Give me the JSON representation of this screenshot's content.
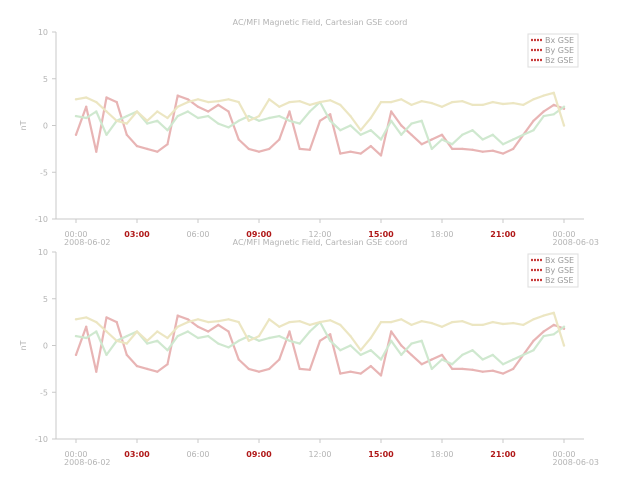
{
  "chart_data": [
    {
      "type": "line",
      "title": "AC/MFI Magnetic Field, Cartesian GSE coord",
      "ylabel": "nT",
      "ylim": [
        -10,
        10
      ],
      "yticks": [
        10,
        5,
        0,
        -5,
        -10
      ],
      "yticklabels": [
        "10",
        "5",
        "0",
        "-5",
        "-10"
      ],
      "xticks": [
        0,
        3,
        6,
        9,
        12,
        15,
        18,
        21,
        24
      ],
      "xticklabels": [
        "00:00",
        "03:00",
        "06:00",
        "09:00",
        "12:00",
        "15:00",
        "18:00",
        "21:00",
        "00:00"
      ],
      "xtick_highlight": [
        false,
        true,
        false,
        true,
        false,
        true,
        false,
        true,
        false
      ],
      "xdate_start": "2008-06-02",
      "xdate_end": "2008-06-03",
      "legend": "top-right",
      "grid": false,
      "series": [
        {
          "name": "Bx GSE",
          "color": "#e8b4b4",
          "x": [
            0,
            0.5,
            1,
            1.5,
            2,
            2.5,
            3,
            3.5,
            4,
            4.5,
            5,
            5.5,
            6,
            6.5,
            7,
            7.5,
            8,
            8.5,
            9,
            9.5,
            10,
            10.5,
            11,
            11.5,
            12,
            12.5,
            13,
            13.5,
            14,
            14.5,
            15,
            15.5,
            16,
            16.5,
            17,
            17.5,
            18,
            18.5,
            19,
            19.5,
            20,
            20.5,
            21,
            21.5,
            22,
            22.5,
            23,
            23.5,
            24
          ],
          "values": [
            -1,
            2,
            -2.8,
            3,
            2.5,
            -1,
            -2.2,
            -2.5,
            -2.8,
            -2,
            3.2,
            2.8,
            2,
            1.5,
            2.2,
            1.5,
            -1.5,
            -2.5,
            -2.8,
            -2.5,
            -1.5,
            1.5,
            -2.5,
            -2.6,
            0.5,
            1.2,
            -3,
            -2.8,
            -3,
            -2.2,
            -3.2,
            1.5,
            0,
            -1,
            -2,
            -1.5,
            -1,
            -2.5,
            -2.5,
            -2.6,
            -2.8,
            -2.7,
            -3,
            -2.5,
            -1,
            0.5,
            1.5,
            2.2,
            1.8
          ]
        },
        {
          "name": "By GSE",
          "color": "#cfe8cf",
          "x": [
            0,
            0.5,
            1,
            1.5,
            2,
            2.5,
            3,
            3.5,
            4,
            4.5,
            5,
            5.5,
            6,
            6.5,
            7,
            7.5,
            8,
            8.5,
            9,
            9.5,
            10,
            10.5,
            11,
            11.5,
            12,
            12.5,
            13,
            13.5,
            14,
            14.5,
            15,
            15.5,
            16,
            16.5,
            17,
            17.5,
            18,
            18.5,
            19,
            19.5,
            20,
            20.5,
            21,
            21.5,
            22,
            22.5,
            23,
            23.5,
            24
          ],
          "values": [
            1,
            0.8,
            1.5,
            -1,
            0.5,
            1,
            1.5,
            0.2,
            0.5,
            -0.5,
            1,
            1.5,
            0.8,
            1,
            0.2,
            -0.2,
            0.5,
            1,
            0.5,
            0.8,
            1,
            0.5,
            0.2,
            1.5,
            2.5,
            0.5,
            -0.5,
            0,
            -1,
            -0.5,
            -1.5,
            0.5,
            -1,
            0.2,
            0.5,
            -2.5,
            -1.5,
            -2,
            -1,
            -0.5,
            -1.5,
            -1,
            -2,
            -1.5,
            -1,
            -0.5,
            1,
            1.2,
            2
          ]
        },
        {
          "name": "Bz GSE",
          "color": "#ece6c2",
          "x": [
            0,
            0.5,
            1,
            1.5,
            2,
            2.5,
            3,
            3.5,
            4,
            4.5,
            5,
            5.5,
            6,
            6.5,
            7,
            7.5,
            8,
            8.5,
            9,
            9.5,
            10,
            10.5,
            11,
            11.5,
            12,
            12.5,
            13,
            13.5,
            14,
            14.5,
            15,
            15.5,
            16,
            16.5,
            17,
            17.5,
            18,
            18.5,
            19,
            19.5,
            20,
            20.5,
            21,
            21.5,
            22,
            22.5,
            23,
            23.5,
            24
          ],
          "values": [
            2.8,
            3,
            2.5,
            1.5,
            0.5,
            0.2,
            1.5,
            0.5,
            1.5,
            0.8,
            2,
            2.5,
            2.8,
            2.5,
            2.6,
            2.8,
            2.5,
            0.5,
            1,
            2.8,
            2,
            2.5,
            2.6,
            2.2,
            2.5,
            2.7,
            2.2,
            1,
            -0.5,
            0.8,
            2.5,
            2.5,
            2.8,
            2.2,
            2.6,
            2.4,
            2,
            2.5,
            2.6,
            2.2,
            2.2,
            2.5,
            2.3,
            2.4,
            2.2,
            2.8,
            3.2,
            3.5,
            0
          ]
        }
      ]
    },
    {
      "type": "line",
      "title": "AC/MFI Magnetic Field, Cartesian GSE coord",
      "ylabel": "nT",
      "ylim": [
        -10,
        10
      ],
      "yticks": [
        10,
        5,
        0,
        -5,
        -10
      ],
      "yticklabels": [
        "10",
        "5",
        "0",
        "-5",
        "-10"
      ],
      "xticks": [
        0,
        3,
        6,
        9,
        12,
        15,
        18,
        21,
        24
      ],
      "xticklabels": [
        "00:00",
        "03:00",
        "06:00",
        "09:00",
        "12:00",
        "15:00",
        "18:00",
        "21:00",
        "00:00"
      ],
      "xtick_highlight": [
        false,
        true,
        false,
        true,
        false,
        true,
        false,
        true,
        false
      ],
      "xdate_start": "2008-06-02",
      "xdate_end": "2008-06-03",
      "legend": "top-right",
      "grid": false,
      "series": [
        {
          "name": "Bx GSE",
          "color": "#e8b4b4",
          "x": [
            0,
            0.5,
            1,
            1.5,
            2,
            2.5,
            3,
            3.5,
            4,
            4.5,
            5,
            5.5,
            6,
            6.5,
            7,
            7.5,
            8,
            8.5,
            9,
            9.5,
            10,
            10.5,
            11,
            11.5,
            12,
            12.5,
            13,
            13.5,
            14,
            14.5,
            15,
            15.5,
            16,
            16.5,
            17,
            17.5,
            18,
            18.5,
            19,
            19.5,
            20,
            20.5,
            21,
            21.5,
            22,
            22.5,
            23,
            23.5,
            24
          ],
          "values": [
            -1,
            2,
            -2.8,
            3,
            2.5,
            -1,
            -2.2,
            -2.5,
            -2.8,
            -2,
            3.2,
            2.8,
            2,
            1.5,
            2.2,
            1.5,
            -1.5,
            -2.5,
            -2.8,
            -2.5,
            -1.5,
            1.5,
            -2.5,
            -2.6,
            0.5,
            1.2,
            -3,
            -2.8,
            -3,
            -2.2,
            -3.2,
            1.5,
            0,
            -1,
            -2,
            -1.5,
            -1,
            -2.5,
            -2.5,
            -2.6,
            -2.8,
            -2.7,
            -3,
            -2.5,
            -1,
            0.5,
            1.5,
            2.2,
            1.8
          ]
        },
        {
          "name": "By GSE",
          "color": "#cfe8cf",
          "x": [
            0,
            0.5,
            1,
            1.5,
            2,
            2.5,
            3,
            3.5,
            4,
            4.5,
            5,
            5.5,
            6,
            6.5,
            7,
            7.5,
            8,
            8.5,
            9,
            9.5,
            10,
            10.5,
            11,
            11.5,
            12,
            12.5,
            13,
            13.5,
            14,
            14.5,
            15,
            15.5,
            16,
            16.5,
            17,
            17.5,
            18,
            18.5,
            19,
            19.5,
            20,
            20.5,
            21,
            21.5,
            22,
            22.5,
            23,
            23.5,
            24
          ],
          "values": [
            1,
            0.8,
            1.5,
            -1,
            0.5,
            1,
            1.5,
            0.2,
            0.5,
            -0.5,
            1,
            1.5,
            0.8,
            1,
            0.2,
            -0.2,
            0.5,
            1,
            0.5,
            0.8,
            1,
            0.5,
            0.2,
            1.5,
            2.5,
            0.5,
            -0.5,
            0,
            -1,
            -0.5,
            -1.5,
            0.5,
            -1,
            0.2,
            0.5,
            -2.5,
            -1.5,
            -2,
            -1,
            -0.5,
            -1.5,
            -1,
            -2,
            -1.5,
            -1,
            -0.5,
            1,
            1.2,
            2
          ]
        },
        {
          "name": "Bz GSE",
          "color": "#ece6c2",
          "x": [
            0,
            0.5,
            1,
            1.5,
            2,
            2.5,
            3,
            3.5,
            4,
            4.5,
            5,
            5.5,
            6,
            6.5,
            7,
            7.5,
            8,
            8.5,
            9,
            9.5,
            10,
            10.5,
            11,
            11.5,
            12,
            12.5,
            13,
            13.5,
            14,
            14.5,
            15,
            15.5,
            16,
            16.5,
            17,
            17.5,
            18,
            18.5,
            19,
            19.5,
            20,
            20.5,
            21,
            21.5,
            22,
            22.5,
            23,
            23.5,
            24
          ],
          "values": [
            2.8,
            3,
            2.5,
            1.5,
            0.5,
            0.2,
            1.5,
            0.5,
            1.5,
            0.8,
            2,
            2.5,
            2.8,
            2.5,
            2.6,
            2.8,
            2.5,
            0.5,
            1,
            2.8,
            2,
            2.5,
            2.6,
            2.2,
            2.5,
            2.7,
            2.2,
            1,
            -0.5,
            0.8,
            2.5,
            2.5,
            2.8,
            2.2,
            2.6,
            2.4,
            2,
            2.5,
            2.6,
            2.2,
            2.2,
            2.5,
            2.3,
            2.4,
            2.2,
            2.8,
            3.2,
            3.5,
            0
          ]
        }
      ]
    }
  ]
}
